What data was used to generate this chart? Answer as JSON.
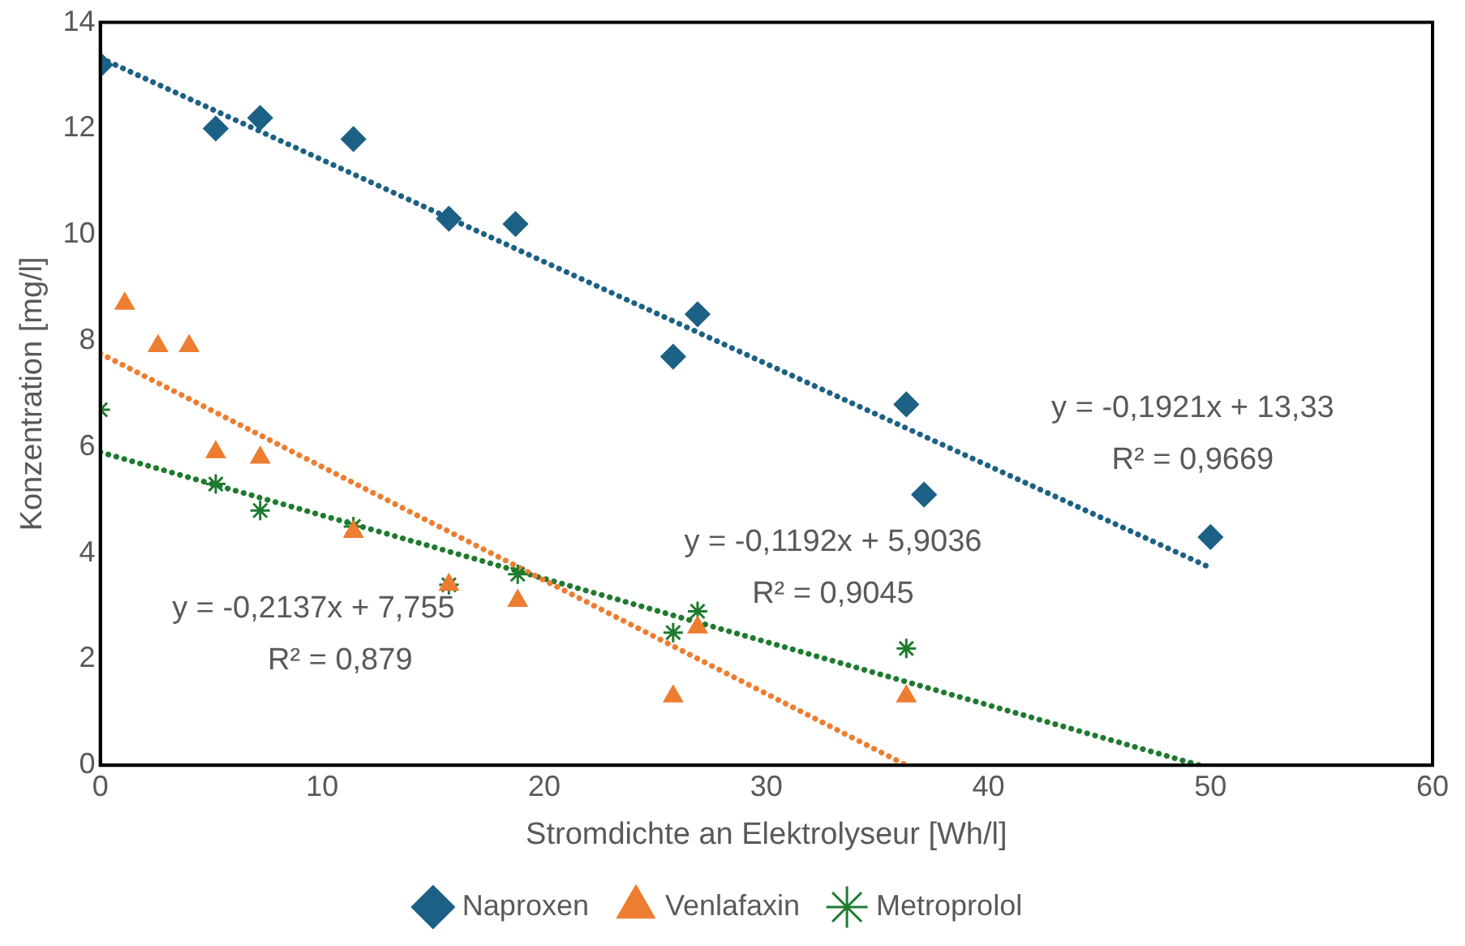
{
  "chart_data": {
    "type": "scatter",
    "xlabel": "Stromdichte an Elektrolyseur [Wh/l]",
    "ylabel": "Konzentration [mg/l]",
    "xlim": [
      0,
      60
    ],
    "xticks": [
      0,
      10,
      20,
      30,
      40,
      50,
      60
    ],
    "ylim": [
      0,
      14
    ],
    "yticks": [
      0,
      2,
      4,
      6,
      8,
      10,
      12,
      14
    ],
    "grid": false,
    "legend": "bottom",
    "series": [
      {
        "name": "Naproxen",
        "color": "#1c6185",
        "marker": "diamond",
        "x": [
          0,
          5.2,
          7.2,
          11.4,
          15.7,
          18.7,
          25.8,
          26.9,
          36.3,
          37.1,
          50.0
        ],
        "values": [
          13.2,
          12.0,
          12.2,
          11.8,
          10.3,
          10.2,
          7.7,
          8.5,
          6.8,
          5.1,
          4.3
        ]
      },
      {
        "name": "Venlafaxin",
        "color": "#ed7d31",
        "marker": "triangle",
        "x": [
          1.1,
          2.6,
          4.0,
          5.2,
          7.2,
          11.4,
          15.7,
          18.8,
          25.8,
          26.9,
          36.3
        ],
        "values": [
          8.7,
          7.9,
          7.9,
          5.9,
          5.8,
          4.4,
          3.4,
          3.1,
          1.3,
          2.6,
          1.3
        ]
      },
      {
        "name": "Metroprolol",
        "color": "#1e7a2e",
        "marker": "cross",
        "x": [
          0,
          5.2,
          7.2,
          11.4,
          15.7,
          18.8,
          25.8,
          26.9,
          36.3
        ],
        "values": [
          6.7,
          5.3,
          4.8,
          4.5,
          3.4,
          3.6,
          2.5,
          2.9,
          2.2
        ]
      },
      {
        "type": "line",
        "color": "#1c6185",
        "line_style": "dotted",
        "x": [
          0,
          49.8
        ],
        "values": [
          13.33,
          3.76
        ]
      },
      {
        "type": "line",
        "color": "#ed7d31",
        "line_style": "dotted",
        "x": [
          0,
          36.3
        ],
        "values": [
          7.76,
          0
        ]
      },
      {
        "type": "line",
        "color": "#1e7a2e",
        "line_style": "dotted",
        "x": [
          0,
          49.5
        ],
        "values": [
          5.9,
          0
        ]
      }
    ],
    "annotations": [
      "y = -0,1921x + 13,33",
      "R² = 0,9669",
      "y = -0,1192x + 5,9036",
      "R² = 0,9045",
      "y = -0,2137x + 7,755",
      "R² = 0,879"
    ]
  }
}
